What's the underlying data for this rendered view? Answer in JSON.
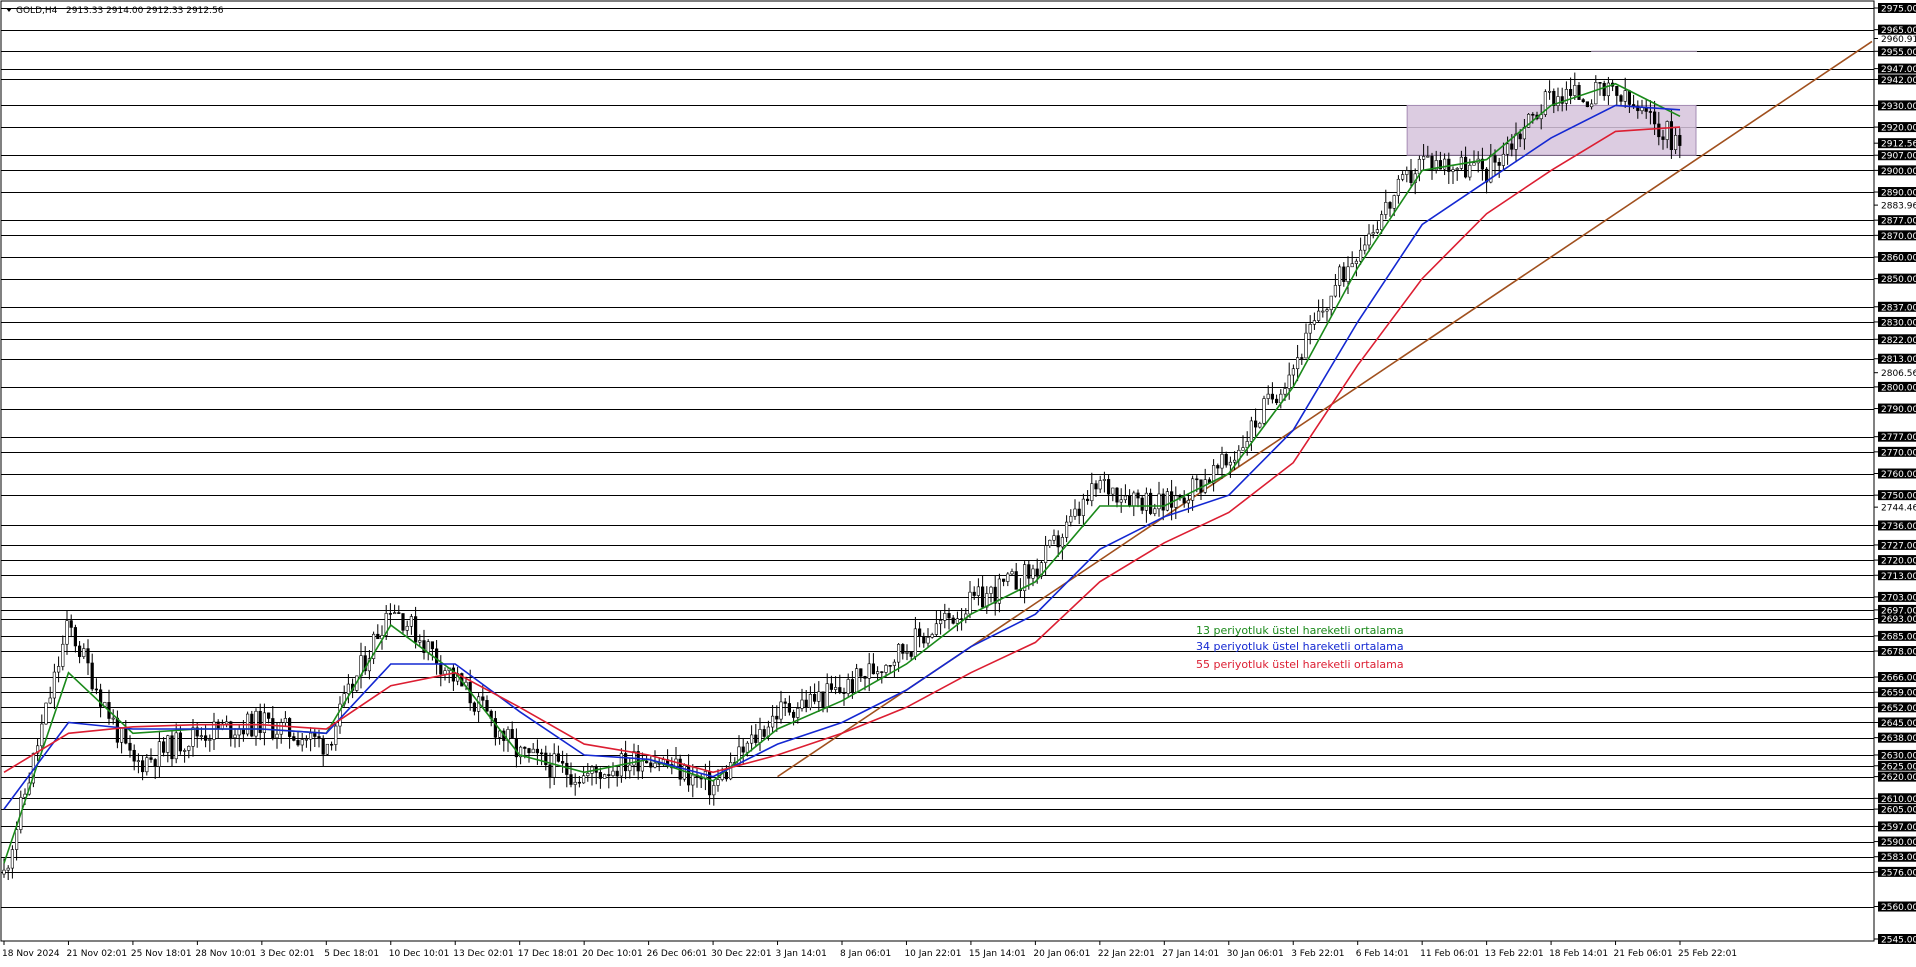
{
  "symbol": {
    "name": "GOLD,H4",
    "quote": "2913.33 2914.00 2912.33 2912.56",
    "menu_icon": "triangle-down-icon"
  },
  "colors": {
    "ema13": "#1a8a1a",
    "ema34": "#1428d2",
    "ema55": "#dc1e32",
    "trendline": "#a0501e",
    "zone_fill": "#d6c3dc",
    "zone_border": "#a58cb4",
    "levels": "#000000",
    "candles": "#000000"
  },
  "legend": [
    {
      "label": "13 periyotluk üstel hareketli ortalama",
      "color": "#1a8a1a"
    },
    {
      "label": "34 periyotluk üstel hareketli ortalama",
      "color": "#1428d2"
    },
    {
      "label": "55 periyotluk üstel hareketli ortalama",
      "color": "#dc1e32"
    }
  ],
  "chart_data": {
    "type": "candlestick",
    "title": "GOLD,H4",
    "timeframe": "H4",
    "y_range": [
      2545,
      2975
    ],
    "y_axis_labels": [
      {
        "value": 2975.0,
        "label": "2975.00",
        "tag": true
      },
      {
        "value": 2965.0,
        "label": "2965.00",
        "tag": true
      },
      {
        "value": 2960.91,
        "label": "2960.91",
        "tag": false
      },
      {
        "value": 2955.0,
        "label": "2955.00",
        "tag": true
      },
      {
        "value": 2947.0,
        "label": "2947.00",
        "tag": true
      },
      {
        "value": 2942.0,
        "label": "2942.00",
        "tag": true
      },
      {
        "value": 2930.0,
        "label": "2930.00",
        "tag": true
      },
      {
        "value": 2920.0,
        "label": "2920.00",
        "tag": true
      },
      {
        "value": 2912.56,
        "label": "2912.56",
        "tag": true
      },
      {
        "value": 2907.0,
        "label": "2907.00",
        "tag": true
      },
      {
        "value": 2900.0,
        "label": "2900.00",
        "tag": true
      },
      {
        "value": 2890.0,
        "label": "2890.00",
        "tag": true
      },
      {
        "value": 2883.96,
        "label": "2883.96",
        "tag": false
      },
      {
        "value": 2877.0,
        "label": "2877.00",
        "tag": true
      },
      {
        "value": 2870.0,
        "label": "2870.00",
        "tag": true
      },
      {
        "value": 2860.0,
        "label": "2860.00",
        "tag": true
      },
      {
        "value": 2850.0,
        "label": "2850.00",
        "tag": true
      },
      {
        "value": 2837.0,
        "label": "2837.00",
        "tag": true
      },
      {
        "value": 2830.0,
        "label": "2830.00",
        "tag": true
      },
      {
        "value": 2822.0,
        "label": "2822.00",
        "tag": true
      },
      {
        "value": 2813.0,
        "label": "2813.00",
        "tag": true
      },
      {
        "value": 2806.56,
        "label": "2806.56",
        "tag": false
      },
      {
        "value": 2800.0,
        "label": "2800.00",
        "tag": true
      },
      {
        "value": 2790.0,
        "label": "2790.00",
        "tag": true
      },
      {
        "value": 2777.0,
        "label": "2777.00",
        "tag": true
      },
      {
        "value": 2770.0,
        "label": "2770.00",
        "tag": true
      },
      {
        "value": 2760.0,
        "label": "2760.00",
        "tag": true
      },
      {
        "value": 2750.0,
        "label": "2750.00",
        "tag": true
      },
      {
        "value": 2744.46,
        "label": "2744.46",
        "tag": false
      },
      {
        "value": 2736.0,
        "label": "2736.00",
        "tag": true
      },
      {
        "value": 2727.0,
        "label": "2727.00",
        "tag": true
      },
      {
        "value": 2720.0,
        "label": "2720.00",
        "tag": true
      },
      {
        "value": 2713.0,
        "label": "2713.00",
        "tag": true
      },
      {
        "value": 2703.0,
        "label": "2703.00",
        "tag": true
      },
      {
        "value": 2697.0,
        "label": "2697.00",
        "tag": true
      },
      {
        "value": 2693.0,
        "label": "2693.00",
        "tag": true
      },
      {
        "value": 2685.0,
        "label": "2685.00",
        "tag": true
      },
      {
        "value": 2678.0,
        "label": "2678.00",
        "tag": true
      },
      {
        "value": 2666.0,
        "label": "2666.00",
        "tag": true
      },
      {
        "value": 2659.0,
        "label": "2659.00",
        "tag": true
      },
      {
        "value": 2652.0,
        "label": "2652.00",
        "tag": true
      },
      {
        "value": 2645.0,
        "label": "2645.00",
        "tag": true
      },
      {
        "value": 2638.0,
        "label": "2638.00",
        "tag": true
      },
      {
        "value": 2630.0,
        "label": "2630.00",
        "tag": true
      },
      {
        "value": 2625.0,
        "label": "2625.00",
        "tag": true
      },
      {
        "value": 2620.0,
        "label": "2620.00",
        "tag": true
      },
      {
        "value": 2610.0,
        "label": "2610.00",
        "tag": true
      },
      {
        "value": 2605.0,
        "label": "2605.00",
        "tag": true
      },
      {
        "value": 2597.0,
        "label": "2597.00",
        "tag": true
      },
      {
        "value": 2590.0,
        "label": "2590.00",
        "tag": true
      },
      {
        "value": 2583.0,
        "label": "2583.00",
        "tag": true
      },
      {
        "value": 2576.0,
        "label": "2576.00",
        "tag": true
      },
      {
        "value": 2560.0,
        "label": "2560.00",
        "tag": true
      },
      {
        "value": 2545.0,
        "label": "2545.00",
        "tag": true
      }
    ],
    "horizontal_levels": [
      2975,
      2965,
      2955,
      2947,
      2942,
      2930,
      2920,
      2907,
      2900,
      2890,
      2877,
      2870,
      2860,
      2850,
      2837,
      2830,
      2822,
      2813,
      2800,
      2790,
      2777,
      2770,
      2760,
      2750,
      2736,
      2727,
      2720,
      2713,
      2703,
      2697,
      2693,
      2685,
      2678,
      2666,
      2659,
      2652,
      2645,
      2638,
      2630,
      2625,
      2620,
      2610,
      2605,
      2597,
      2590,
      2583,
      2576,
      2560
    ],
    "x_labels": [
      "18 Nov 2024",
      "21 Nov 02:01",
      "25 Nov 18:01",
      "28 Nov 10:01",
      "3 Dec 02:01",
      "5 Dec 18:01",
      "10 Dec 10:01",
      "13 Dec 02:01",
      "17 Dec 18:01",
      "20 Dec 10:01",
      "26 Dec 06:01",
      "30 Dec 22:01",
      "3 Jan 14:01",
      "8 Jan 06:01",
      "10 Jan 22:01",
      "15 Jan 14:01",
      "20 Jan 06:01",
      "22 Jan 22:01",
      "27 Jan 14:01",
      "30 Jan 06:01",
      "3 Feb 22:01",
      "6 Feb 14:01",
      "11 Feb 06:01",
      "13 Feb 22:01",
      "18 Feb 14:01",
      "21 Feb 06:01",
      "25 Feb 22:01"
    ],
    "zone": {
      "from_label": "11 Feb 06:01",
      "to_label": "25 Feb 22:01",
      "low": 2907,
      "high": 2930
    },
    "resistance_line": {
      "from_label": "18 Feb 14:01",
      "to_label": "25 Feb 22:01",
      "value": 2955
    },
    "trendline": {
      "from": {
        "x": "3 Jan 14:01",
        "y": 2620
      },
      "to": {
        "x": "25 Feb 22:01",
        "y": 2900
      },
      "extends_right": true
    },
    "price_path": [
      {
        "x": "18 Nov 2024",
        "y": 2575
      },
      {
        "x": "21 Nov 02:01",
        "y": 2690
      },
      {
        "x": "25 Nov 18:01",
        "y": 2625
      },
      {
        "x": "28 Nov 10:01",
        "y": 2640
      },
      {
        "x": "3 Dec 02:01",
        "y": 2645
      },
      {
        "x": "5 Dec 18:01",
        "y": 2635
      },
      {
        "x": "10 Dec 10:01",
        "y": 2700
      },
      {
        "x": "13 Dec 02:01",
        "y": 2665
      },
      {
        "x": "17 Dec 18:01",
        "y": 2630
      },
      {
        "x": "20 Dec 10:01",
        "y": 2620
      },
      {
        "x": "26 Dec 06:01",
        "y": 2630
      },
      {
        "x": "30 Dec 22:01",
        "y": 2615
      },
      {
        "x": "3 Jan 14:01",
        "y": 2650
      },
      {
        "x": "8 Jan 06:01",
        "y": 2660
      },
      {
        "x": "10 Jan 22:01",
        "y": 2680
      },
      {
        "x": "15 Jan 14:01",
        "y": 2700
      },
      {
        "x": "20 Jan 06:01",
        "y": 2715
      },
      {
        "x": "22 Jan 22:01",
        "y": 2755
      },
      {
        "x": "27 Jan 14:01",
        "y": 2745
      },
      {
        "x": "30 Jan 06:01",
        "y": 2765
      },
      {
        "x": "3 Feb 22:01",
        "y": 2810
      },
      {
        "x": "6 Feb 14:01",
        "y": 2865
      },
      {
        "x": "11 Feb 06:01",
        "y": 2905
      },
      {
        "x": "13 Feb 22:01",
        "y": 2900
      },
      {
        "x": "18 Feb 14:01",
        "y": 2935
      },
      {
        "x": "21 Feb 06:01",
        "y": 2935
      },
      {
        "x": "25 Feb 22:01",
        "y": 2912.56
      }
    ],
    "series": [
      {
        "name": "13 periyotluk üstel hareketli ortalama",
        "color": "#1a8a1a",
        "values": [
          2580,
          2668,
          2640,
          2642,
          2642,
          2640,
          2690,
          2668,
          2630,
          2622,
          2628,
          2618,
          2642,
          2655,
          2672,
          2695,
          2710,
          2745,
          2745,
          2760,
          2800,
          2855,
          2900,
          2905,
          2930,
          2940,
          2925
        ]
      },
      {
        "name": "34 periyotluk üstel hareketli ortalama",
        "color": "#1428d2",
        "values": [
          2605,
          2645,
          2642,
          2642,
          2642,
          2640,
          2672,
          2672,
          2650,
          2630,
          2628,
          2620,
          2635,
          2645,
          2660,
          2680,
          2695,
          2725,
          2740,
          2750,
          2780,
          2830,
          2875,
          2895,
          2915,
          2930,
          2928
        ]
      },
      {
        "name": "55 periyotluk üstel hareketli ortalama",
        "color": "#dc1e32",
        "values": [
          2622,
          2640,
          2643,
          2644,
          2644,
          2642,
          2662,
          2668,
          2652,
          2635,
          2630,
          2622,
          2630,
          2640,
          2652,
          2668,
          2682,
          2710,
          2728,
          2742,
          2765,
          2810,
          2850,
          2880,
          2900,
          2918,
          2920
        ]
      }
    ]
  }
}
